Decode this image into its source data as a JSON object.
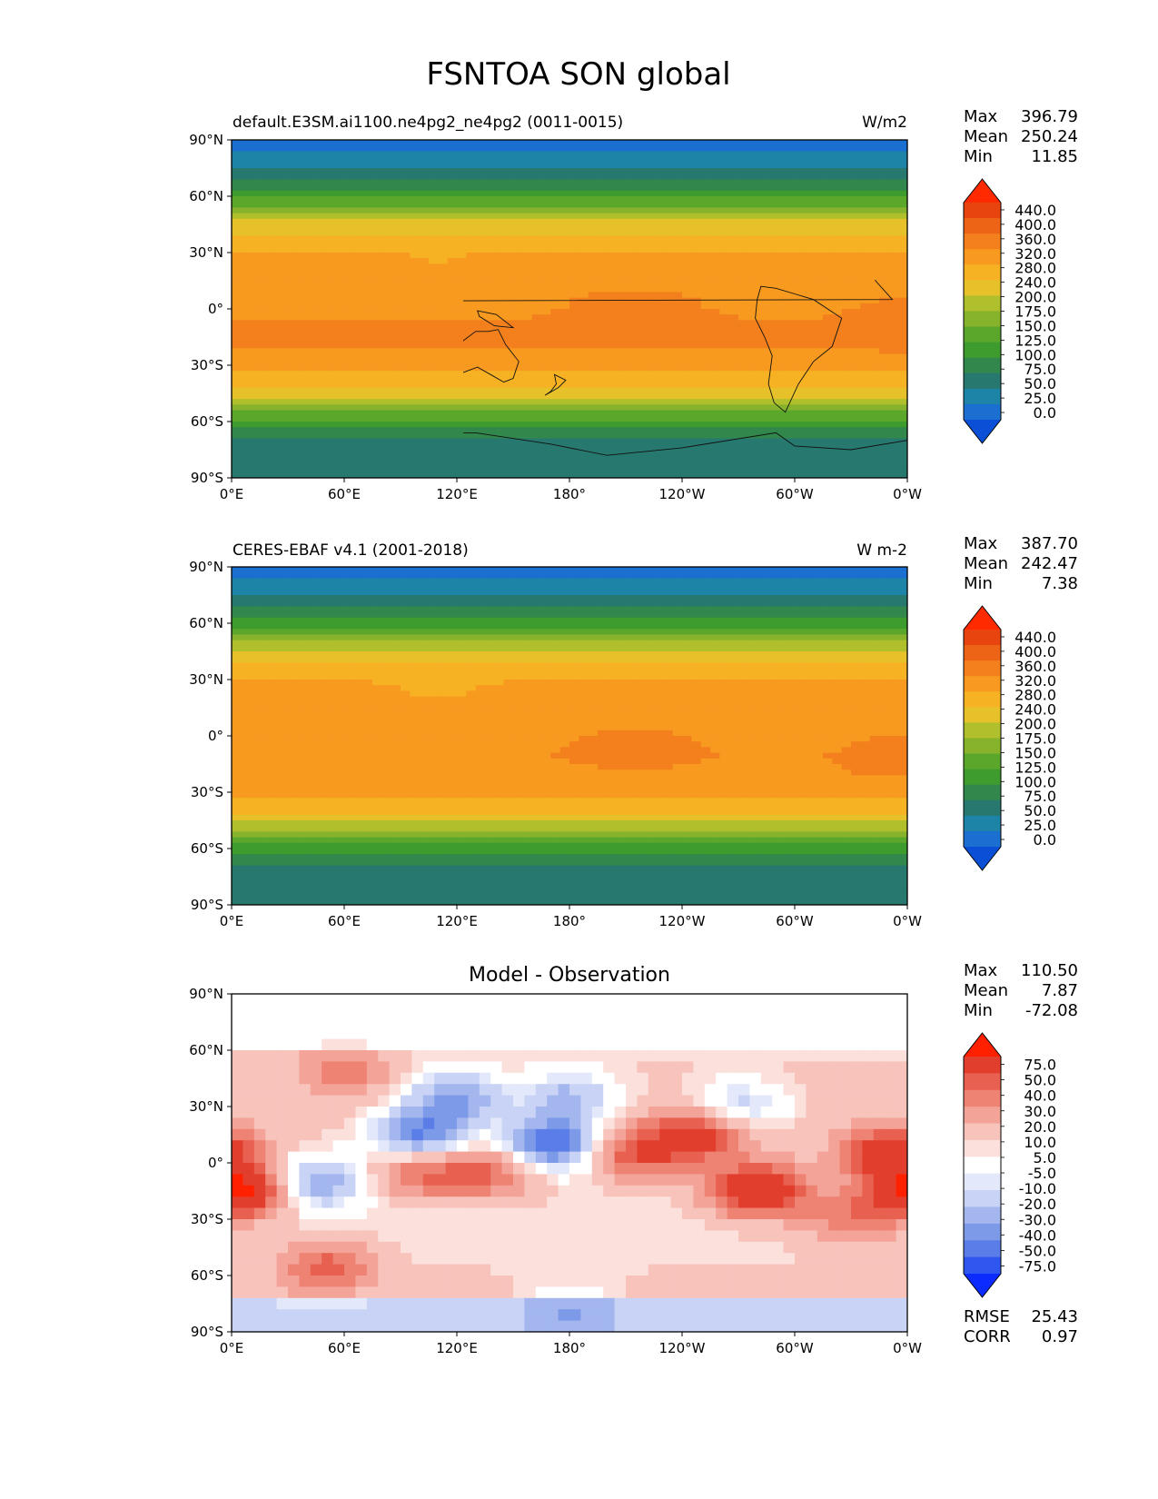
{
  "figure": {
    "title": "FSNTOA SON global"
  },
  "lat_ticks": [
    "90°N",
    "60°N",
    "30°N",
    "0°",
    "30°S",
    "60°S",
    "90°S"
  ],
  "lon_ticks": [
    "0°E",
    "60°E",
    "120°E",
    "180°",
    "120°W",
    "60°W",
    "0°W"
  ],
  "panels": [
    {
      "id": "model",
      "title_left": "default.E3SM.ai1100.ne4pg2_ne4pg2 (0011-0015)",
      "title_center": "",
      "units": "W/m2",
      "stats": [
        {
          "label": "Max",
          "value": "396.79"
        },
        {
          "label": "Mean",
          "value": "250.24"
        },
        {
          "label": "Min",
          "value": "11.85"
        }
      ],
      "colorbar_labels": [
        "440.0",
        "400.0",
        "360.0",
        "320.0",
        "280.0",
        "240.0",
        "200.0",
        "175.0",
        "150.0",
        "125.0",
        "100.0",
        "75.0",
        "50.0",
        "25.0",
        "0.0"
      ],
      "extra_stats": []
    },
    {
      "id": "obs",
      "title_left": "CERES-EBAF v4.1 (2001-2018)",
      "title_center": "",
      "units": "W m-2",
      "stats": [
        {
          "label": "Max",
          "value": "387.70"
        },
        {
          "label": "Mean",
          "value": "242.47"
        },
        {
          "label": "Min",
          "value": "7.38"
        }
      ],
      "colorbar_labels": [
        "440.0",
        "400.0",
        "360.0",
        "320.0",
        "280.0",
        "240.0",
        "200.0",
        "175.0",
        "150.0",
        "125.0",
        "100.0",
        "75.0",
        "50.0",
        "25.0",
        "0.0"
      ],
      "extra_stats": []
    },
    {
      "id": "diff",
      "title_left": "",
      "title_center": "Model - Observation",
      "units": "",
      "stats": [
        {
          "label": "Max",
          "value": "110.50"
        },
        {
          "label": "Mean",
          "value": "7.87"
        },
        {
          "label": "Min",
          "value": "-72.08"
        }
      ],
      "colorbar_labels": [
        "75.0",
        "50.0",
        "40.0",
        "30.0",
        "20.0",
        "10.0",
        "5.0",
        "-5.0",
        "-10.0",
        "-20.0",
        "-30.0",
        "-40.0",
        "-50.0",
        "-75.0"
      ],
      "extra_stats": [
        {
          "label": "RMSE",
          "value": "25.43"
        },
        {
          "label": "CORR",
          "value": "0.97"
        }
      ]
    }
  ],
  "chart_data": [
    {
      "type": "heatmap",
      "title": "default.E3SM.ai1100.ne4pg2_ne4pg2 (0011-0015)",
      "units": "W/m2",
      "xlabel": "",
      "ylabel": "",
      "x_range": [
        0,
        360
      ],
      "y_range": [
        -90,
        90
      ],
      "levels": [
        0,
        25,
        50,
        75,
        100,
        125,
        150,
        175,
        200,
        240,
        280,
        320,
        360,
        400,
        440
      ],
      "colors": [
        "#0a4fd6",
        "#1a6fd0",
        "#1d84a8",
        "#27786f",
        "#31874c",
        "#3e9c2e",
        "#5aa72c",
        "#86b22c",
        "#b0bf2c",
        "#e6c12a",
        "#f7b224",
        "#f79a1f",
        "#f3801d",
        "#ee6416",
        "#e8440f",
        "#ff2a00"
      ],
      "zonal_profile": {
        "lat": [
          90,
          80,
          70,
          60,
          50,
          40,
          30,
          20,
          10,
          0,
          -10,
          -20,
          -30,
          -40,
          -50,
          -60,
          -70,
          -80,
          -90
        ],
        "value": [
          15,
          35,
          70,
          120,
          180,
          240,
          285,
          305,
          315,
          315,
          322,
          320,
          295,
          250,
          185,
          120,
          70,
          70,
          65
        ]
      },
      "stats": {
        "max": 396.79,
        "mean": 250.24,
        "min": 11.85
      }
    },
    {
      "type": "heatmap",
      "title": "CERES-EBAF v4.1 (2001-2018)",
      "units": "W m-2",
      "xlabel": "",
      "ylabel": "",
      "x_range": [
        0,
        360
      ],
      "y_range": [
        -90,
        90
      ],
      "levels": [
        0,
        25,
        50,
        75,
        100,
        125,
        150,
        175,
        200,
        240,
        280,
        320,
        360,
        400,
        440
      ],
      "colors": [
        "#0a4fd6",
        "#1a6fd0",
        "#1d84a8",
        "#27786f",
        "#31874c",
        "#3e9c2e",
        "#5aa72c",
        "#86b22c",
        "#b0bf2c",
        "#e6c12a",
        "#f7b224",
        "#f79a1f",
        "#f3801d",
        "#ee6416",
        "#e8440f",
        "#ff2a00"
      ],
      "zonal_profile": {
        "lat": [
          90,
          80,
          70,
          60,
          50,
          40,
          30,
          20,
          10,
          0,
          -10,
          -20,
          -30,
          -40,
          -50,
          -60,
          -70,
          -80,
          -90
        ],
        "value": [
          10,
          30,
          65,
          115,
          175,
          235,
          280,
          300,
          305,
          310,
          318,
          315,
          290,
          245,
          175,
          115,
          65,
          65,
          60
        ]
      },
      "stats": {
        "max": 387.7,
        "mean": 242.47,
        "min": 7.38
      }
    },
    {
      "type": "heatmap",
      "title": "Model - Observation",
      "units": "",
      "xlabel": "",
      "ylabel": "",
      "x_range": [
        0,
        360
      ],
      "y_range": [
        -90,
        90
      ],
      "levels": [
        -75,
        -50,
        -40,
        -30,
        -20,
        -10,
        -5,
        5,
        10,
        20,
        30,
        40,
        50,
        75
      ],
      "colors": [
        "#0b2bff",
        "#2f57f0",
        "#5a7de8",
        "#7d9ae8",
        "#a3b6ee",
        "#c8d3f5",
        "#e3e9fb",
        "#ffffff",
        "#fbe0dc",
        "#f7c3bb",
        "#f3a398",
        "#ee8273",
        "#e8604f",
        "#e23e2e",
        "#ff2000"
      ],
      "anomalies": [
        {
          "lon": 5,
          "lat": -15,
          "value": 70
        },
        {
          "lon": 280,
          "lat": -15,
          "value": 65
        },
        {
          "lon": 250,
          "lat": 15,
          "value": 45
        },
        {
          "lon": 215,
          "lat": 5,
          "value": 40
        },
        {
          "lon": 350,
          "lat": 5,
          "value": 50
        },
        {
          "lon": 140,
          "lat": -5,
          "value": 35
        },
        {
          "lon": 100,
          "lat": -5,
          "value": 35
        },
        {
          "lon": 170,
          "lat": 10,
          "value": -65
        },
        {
          "lon": 100,
          "lat": 15,
          "value": -55
        },
        {
          "lon": 120,
          "lat": 35,
          "value": -45
        },
        {
          "lon": 180,
          "lat": 35,
          "value": -35
        },
        {
          "lon": 45,
          "lat": -10,
          "value": -40
        },
        {
          "lon": 60,
          "lat": 50,
          "value": 25
        },
        {
          "lon": 330,
          "lat": -30,
          "value": 30
        },
        {
          "lon": 50,
          "lat": -55,
          "value": 35
        },
        {
          "lon": 270,
          "lat": 30,
          "value": -30
        },
        {
          "lon": 180,
          "lat": -80,
          "value": -20
        }
      ],
      "stats": {
        "max": 110.5,
        "mean": 7.87,
        "min": -72.08,
        "rmse": 25.43,
        "corr": 0.97
      }
    }
  ]
}
